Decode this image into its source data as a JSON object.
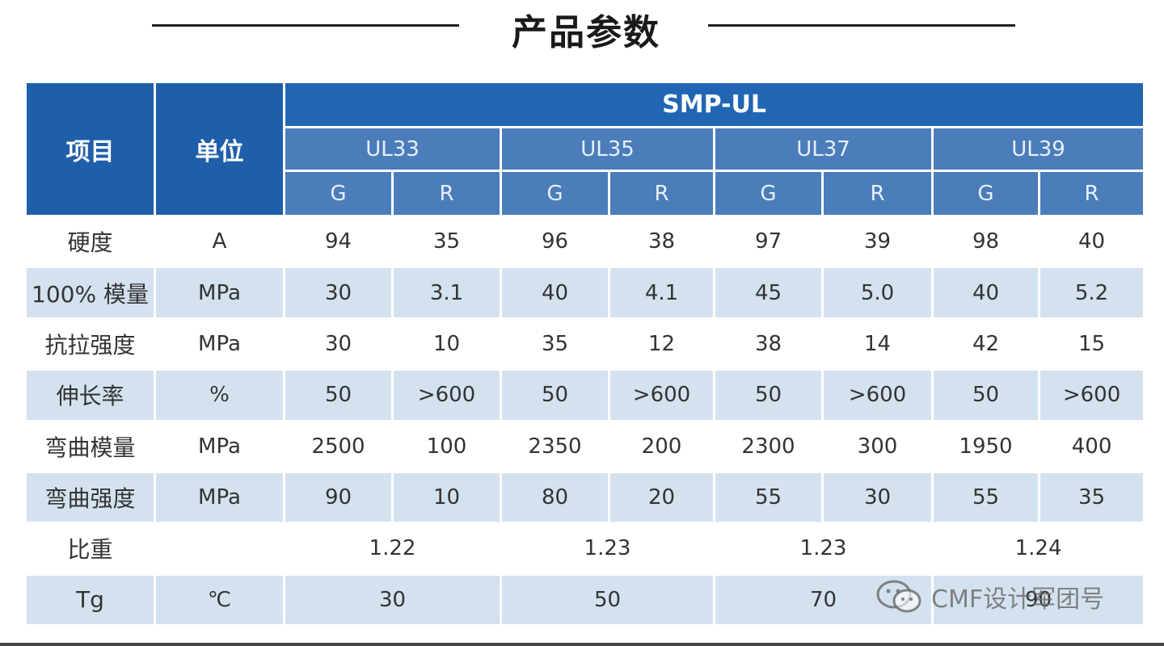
{
  "title": "产品参数",
  "header": {
    "item": "项目",
    "unit": "单位",
    "product": "SMP-UL",
    "models": [
      "UL33",
      "UL35",
      "UL37",
      "UL39"
    ],
    "sub": [
      "G",
      "R"
    ]
  },
  "rows": [
    {
      "label": "硬度",
      "unit": "A",
      "values": [
        "94",
        "35",
        "96",
        "38",
        "97",
        "39",
        "98",
        "40"
      ]
    },
    {
      "label": "100% 模量",
      "unit": "MPa",
      "values": [
        "30",
        "3.1",
        "40",
        "4.1",
        "45",
        "5.0",
        "40",
        "5.2"
      ]
    },
    {
      "label": "抗拉强度",
      "unit": "MPa",
      "values": [
        "30",
        "10",
        "35",
        "12",
        "38",
        "14",
        "42",
        "15"
      ]
    },
    {
      "label": "伸长率",
      "unit": "%",
      "values": [
        "50",
        ">600",
        "50",
        ">600",
        "50",
        ">600",
        "50",
        ">600"
      ]
    },
    {
      "label": "弯曲模量",
      "unit": "MPa",
      "values": [
        "2500",
        "100",
        "2350",
        "200",
        "2300",
        "300",
        "1950",
        "400"
      ]
    },
    {
      "label": "弯曲强度",
      "unit": "MPa",
      "values": [
        "90",
        "10",
        "80",
        "20",
        "55",
        "30",
        "55",
        "35"
      ]
    }
  ],
  "merged_rows": [
    {
      "label": "比重",
      "unit": "",
      "values": [
        "1.22",
        "1.23",
        "1.23",
        "1.24"
      ]
    },
    {
      "label": "Tg",
      "unit": "℃",
      "values": [
        "30",
        "50",
        "70",
        "90"
      ]
    }
  ],
  "watermark": "CMF设计军团号",
  "colors": {
    "header_dark": "#1f5ea8",
    "header_light": "#4a7dba",
    "row_stripe": "#d4e2ef"
  }
}
